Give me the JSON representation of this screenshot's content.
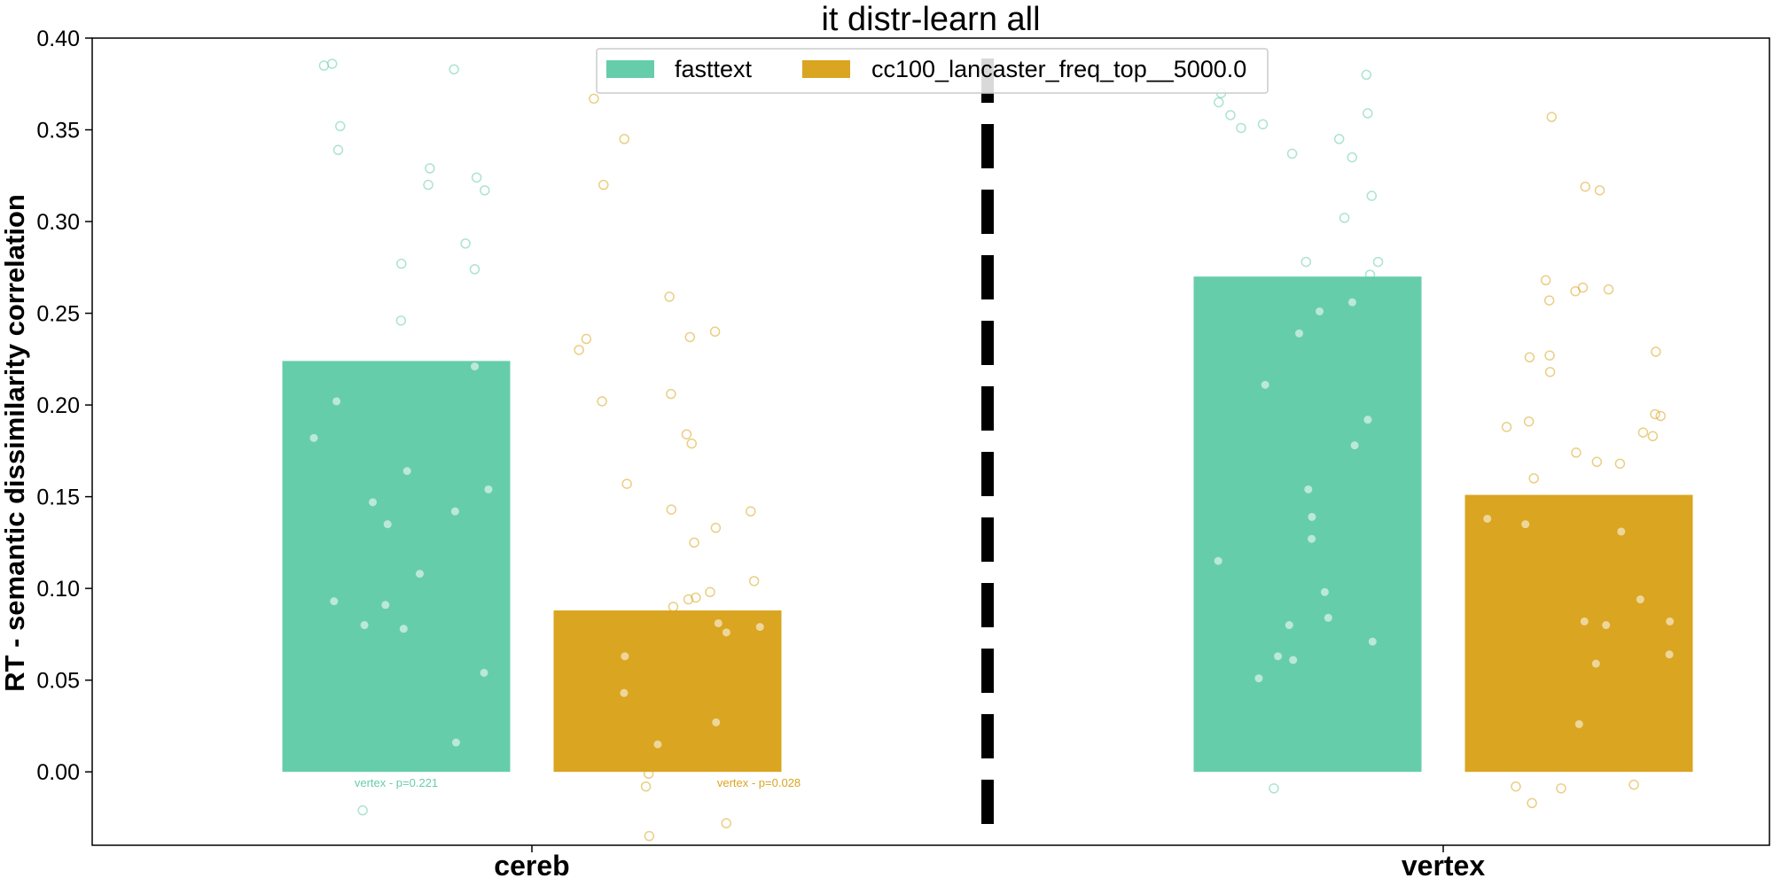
{
  "chart_data": {
    "type": "bar",
    "title": "it distr-learn all",
    "ylabel": "RT - semantic dissimilarity correlation",
    "xlabel": "",
    "ylim": [
      -0.04,
      0.4
    ],
    "yticks": [
      0.0,
      0.05,
      0.1,
      0.15,
      0.2,
      0.25,
      0.3,
      0.35,
      0.4
    ],
    "ytick_labels": [
      "0.00",
      "0.05",
      "0.10",
      "0.15",
      "0.20",
      "0.25",
      "0.30",
      "0.35",
      "0.40"
    ],
    "categories": [
      "cereb",
      "vertex"
    ],
    "legend_position": "top-center",
    "series": [
      {
        "name": "fasttext",
        "color": "#66cdaa",
        "values": [
          0.224,
          0.27
        ],
        "filled_points": [
          [
            0.221,
            0.182,
            0.164,
            0.147,
            0.135,
            0.108,
            0.093,
            0.08,
            0.078,
            0.054,
            0.016,
            0.202,
            0.154,
            0.142,
            0.091
          ],
          [
            0.256,
            0.251,
            0.239,
            0.211,
            0.192,
            0.178,
            0.154,
            0.139,
            0.127,
            0.115,
            0.098,
            0.084,
            0.08,
            0.071,
            0.063,
            0.061,
            0.051
          ]
        ],
        "open_points": [
          [
            0.386,
            0.385,
            0.383,
            0.352,
            0.339,
            0.329,
            0.324,
            0.32,
            0.317,
            0.288,
            0.277,
            0.274,
            0.246,
            -0.021
          ],
          [
            0.38,
            0.37,
            0.365,
            0.359,
            0.358,
            0.353,
            0.351,
            0.345,
            0.337,
            0.335,
            0.314,
            0.302,
            0.278,
            0.278,
            0.271,
            -0.009
          ]
        ],
        "annotation": "vertex - p=0.221"
      },
      {
        "name": "cc100_lancaster_freq_top__5000.0",
        "color": "#daa520",
        "values": [
          0.088,
          0.151
        ],
        "filled_points": [
          [
            0.081,
            0.079,
            0.076,
            0.063,
            0.043,
            0.027,
            0.015
          ],
          [
            0.138,
            0.135,
            0.131,
            0.094,
            0.082,
            0.082,
            0.08,
            0.064,
            0.059,
            0.026
          ]
        ],
        "open_points": [
          [
            0.367,
            0.345,
            0.32,
            0.259,
            0.24,
            0.237,
            0.236,
            0.23,
            0.206,
            0.202,
            0.184,
            0.179,
            0.157,
            0.143,
            0.142,
            0.133,
            0.125,
            0.104,
            0.098,
            0.095,
            0.094,
            0.09,
            -0.001,
            -0.008,
            -0.028,
            -0.035
          ],
          [
            0.357,
            0.319,
            0.317,
            0.268,
            0.264,
            0.263,
            0.262,
            0.257,
            0.229,
            0.227,
            0.226,
            0.218,
            0.195,
            0.194,
            0.191,
            0.188,
            0.185,
            0.183,
            0.174,
            0.169,
            0.168,
            0.16,
            -0.007,
            -0.008,
            -0.009,
            -0.017
          ]
        ],
        "annotation": "vertex - p=0.028"
      }
    ]
  }
}
